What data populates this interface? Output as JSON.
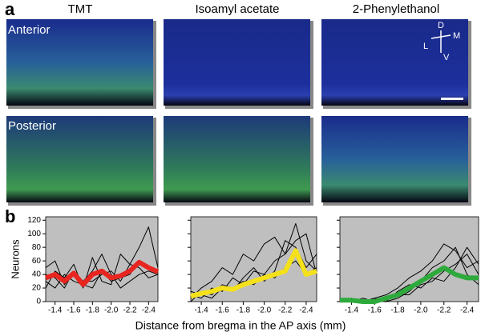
{
  "panel_a": {
    "label": "a",
    "columns": [
      "TMT",
      "Isoamyl acetate",
      "2-Phenylethanol"
    ],
    "rows": [
      "Anterior",
      "Posterior"
    ],
    "compass": {
      "dorsal": "D",
      "medial": "M",
      "lateral": "L",
      "ventral": "V"
    }
  },
  "panel_b": {
    "label": "b"
  },
  "chart_data": [
    {
      "type": "line",
      "ylabel": "Neurons",
      "x": [
        -1.3,
        -1.4,
        -1.5,
        -1.6,
        -1.7,
        -1.8,
        -1.9,
        -2.0,
        -2.1,
        -2.2,
        -2.3,
        -2.4,
        -2.5
      ],
      "xlim": [
        -1.3,
        -2.5
      ],
      "xticks": [
        -1.4,
        -1.6,
        -1.8,
        {
          "value": -2,
          "label": "-2.0"
        },
        -2.2,
        -2.4
      ],
      "ylim": [
        0,
        125
      ],
      "yticks": [
        0,
        20,
        40,
        60,
        80,
        100,
        120
      ],
      "background": "#bfbfbf",
      "series": [
        {
          "color": "#000000",
          "values": [
            20,
            45,
            35,
            55,
            20,
            65,
            30,
            25,
            70,
            55,
            80,
            110,
            50
          ]
        },
        {
          "color": "#000000",
          "values": [
            50,
            60,
            25,
            40,
            30,
            45,
            70,
            40,
            20,
            30,
            40,
            45,
            40
          ]
        },
        {
          "color": "#000000",
          "values": [
            30,
            20,
            40,
            30,
            25,
            20,
            45,
            30,
            35,
            40,
            60,
            50,
            45
          ]
        },
        {
          "color": "#000000",
          "values": [
            40,
            35,
            20,
            45,
            30,
            30,
            40,
            45,
            30,
            55,
            50,
            35,
            40
          ]
        },
        {
          "color": "#e8251f",
          "values": [
            35,
            40,
            30,
            42,
            25,
            40,
            45,
            35,
            38,
            45,
            58,
            50,
            44
          ]
        }
      ]
    },
    {
      "type": "line",
      "xlabel": "Distance from bregma in the AP axis (mm)",
      "x": [
        -1.3,
        -1.4,
        -1.5,
        -1.6,
        -1.7,
        -1.8,
        -1.9,
        -2.0,
        -2.1,
        -2.2,
        -2.3,
        -2.4,
        -2.5
      ],
      "xlim": [
        -1.3,
        -2.5
      ],
      "xticks": [
        -1.4,
        -1.6,
        -1.8,
        {
          "value": -2,
          "label": "-2.0"
        },
        -2.2,
        -2.4
      ],
      "ylim": [
        0,
        125
      ],
      "yticks": [
        0,
        20,
        40,
        60,
        80,
        100,
        120
      ],
      "background": "#bfbfbf",
      "series": [
        {
          "color": "#000000",
          "values": [
            5,
            20,
            30,
            50,
            40,
            70,
            60,
            85,
            95,
            70,
            115,
            60,
            45
          ]
        },
        {
          "color": "#000000",
          "values": [
            10,
            5,
            20,
            15,
            35,
            25,
            45,
            40,
            60,
            70,
            90,
            100,
            40
          ]
        },
        {
          "color": "#000000",
          "values": [
            0,
            15,
            10,
            25,
            20,
            30,
            25,
            40,
            35,
            50,
            60,
            40,
            50
          ]
        },
        {
          "color": "#000000",
          "values": [
            15,
            10,
            5,
            20,
            15,
            35,
            50,
            30,
            45,
            90,
            80,
            50,
            70
          ]
        },
        {
          "color": "#f5e11a",
          "values": [
            8,
            12,
            15,
            20,
            18,
            25,
            30,
            35,
            40,
            45,
            75,
            40,
            45
          ]
        }
      ]
    },
    {
      "type": "line",
      "x": [
        -1.3,
        -1.4,
        -1.5,
        -1.6,
        -1.7,
        -1.8,
        -1.9,
        -2.0,
        -2.1,
        -2.2,
        -2.3,
        -2.4,
        -2.5
      ],
      "xlim": [
        -1.3,
        -2.5
      ],
      "xticks": [
        -1.4,
        -1.6,
        -1.8,
        {
          "value": -2,
          "label": "-2.0"
        },
        -2.2,
        -2.4
      ],
      "ylim": [
        0,
        125
      ],
      "yticks": [
        0,
        20,
        40,
        60,
        80,
        100,
        120
      ],
      "background": "#bfbfbf",
      "series": [
        {
          "color": "#000000",
          "values": [
            0,
            5,
            0,
            5,
            10,
            20,
            35,
            45,
            60,
            85,
            75,
            50,
            60
          ]
        },
        {
          "color": "#000000",
          "values": [
            5,
            0,
            0,
            0,
            0,
            5,
            15,
            30,
            50,
            60,
            80,
            40,
            25
          ]
        },
        {
          "color": "#000000",
          "values": [
            0,
            0,
            5,
            0,
            5,
            10,
            10,
            25,
            30,
            45,
            55,
            70,
            40
          ]
        },
        {
          "color": "#000000",
          "values": [
            0,
            5,
            0,
            5,
            0,
            15,
            25,
            20,
            35,
            30,
            50,
            80,
            55
          ]
        },
        {
          "color": "#2eaa3c",
          "values": [
            2,
            2,
            0,
            0,
            5,
            10,
            20,
            30,
            40,
            50,
            40,
            35,
            35
          ]
        }
      ]
    }
  ]
}
